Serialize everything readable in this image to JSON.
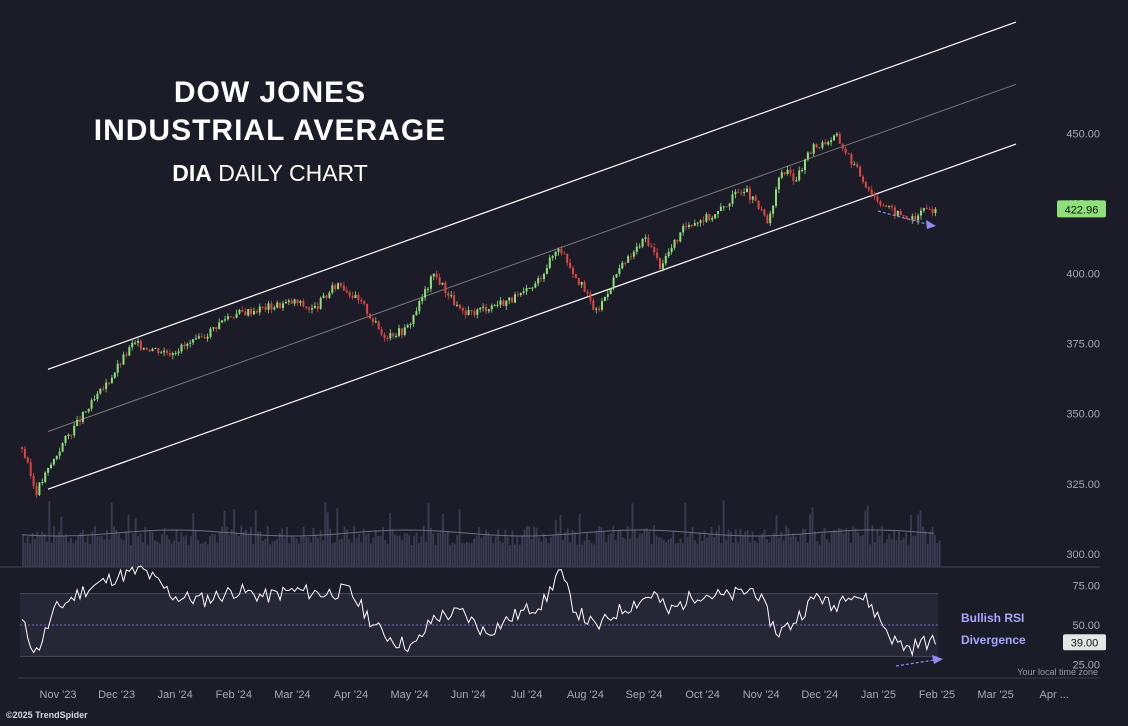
{
  "header": {
    "title_line1": "DOW JONES",
    "title_line2": "INDUSTRIAL AVERAGE",
    "ticker": "DIA",
    "subtitle_rest": "DAILY CHART"
  },
  "annotations": {
    "rsi_label_1": "Bullish RSI",
    "rsi_label_2": "Divergence"
  },
  "footer": {
    "copyright": "©2025 TrendSpider",
    "timezone": "Your local time zone"
  },
  "colors": {
    "background": "#1c1c29",
    "up_candle": "#8fe07a",
    "down_candle": "#e0463f",
    "channel_line": "#ffffff",
    "arrow": "#8f8cf2",
    "price_badge": "#8fe07a"
  },
  "chart_data": {
    "type": "candlestick",
    "price_axis": {
      "ticks": [
        "450.00",
        "425.00",
        "400.00",
        "375.00",
        "350.00",
        "325.00",
        "300.00"
      ],
      "ylim": [
        296,
        462
      ]
    },
    "last_price_label": "422.96",
    "x_ticks": [
      "Nov '23",
      "Dec '23",
      "Jan '24",
      "Feb '24",
      "Mar '24",
      "Apr '24",
      "May '24",
      "Jun '24",
      "Jul '24",
      "Aug '24",
      "Sep '24",
      "Oct '24",
      "Nov '24",
      "Dec '24",
      "Jan '25",
      "Feb '25",
      "Mar '25",
      "Apr ..."
    ],
    "price_path_dates": [
      "2023-10-20",
      "2023-10-27",
      "2023-11-10",
      "2023-12-01",
      "2023-12-15",
      "2024-01-02",
      "2024-01-17",
      "2024-02-01",
      "2024-02-20",
      "2024-03-06",
      "2024-03-15",
      "2024-03-28",
      "2024-04-10",
      "2024-04-19",
      "2024-05-01",
      "2024-05-15",
      "2024-05-30",
      "2024-06-10",
      "2024-06-28",
      "2024-07-05",
      "2024-07-17",
      "2024-07-25",
      "2024-08-05",
      "2024-08-15",
      "2024-08-30",
      "2024-09-06",
      "2024-09-20",
      "2024-10-04",
      "2024-10-18",
      "2024-10-31",
      "2024-11-06",
      "2024-11-14",
      "2024-11-22",
      "2024-12-04",
      "2024-12-18",
      "2024-12-24",
      "2025-01-02",
      "2025-01-13",
      "2025-01-16"
    ],
    "price_path_values": [
      338,
      322,
      340,
      360,
      375,
      372,
      376,
      385,
      388,
      390,
      387,
      397,
      388,
      378,
      380,
      400,
      385,
      388,
      392,
      396,
      410,
      400,
      386,
      400,
      413,
      403,
      418,
      421,
      431,
      418,
      437,
      434,
      445,
      449,
      433,
      427,
      422,
      419,
      422.96
    ],
    "channel": {
      "upper": {
        "from": [
          "2023-10-27",
          364.3
        ],
        "to": [
          "2025-01-31",
          481.5
        ]
      },
      "middle": {
        "from": [
          "2023-10-27",
          342.1
        ],
        "to": [
          "2025-01-31",
          459.3
        ]
      },
      "lower": {
        "from": [
          "2023-10-27",
          321.5
        ],
        "to": [
          "2025-01-31",
          438.0
        ]
      }
    },
    "rsi": {
      "ticks": [
        "75.00",
        "50.00",
        "25.00"
      ],
      "upper_band": 70,
      "mid_line": 50,
      "lower_band": 30,
      "last_value_label": "39.00",
      "path_dates": [
        "2023-10-20",
        "2023-10-27",
        "2023-11-06",
        "2023-11-20",
        "2023-12-05",
        "2023-12-20",
        "2024-01-05",
        "2024-01-20",
        "2024-02-05",
        "2024-02-20",
        "2024-03-05",
        "2024-03-20",
        "2024-04-02",
        "2024-04-16",
        "2024-04-25",
        "2024-05-05",
        "2024-05-15",
        "2024-05-29",
        "2024-06-10",
        "2024-06-25",
        "2024-07-10",
        "2024-07-17",
        "2024-07-25",
        "2024-08-05",
        "2024-08-15",
        "2024-09-03",
        "2024-09-10",
        "2024-09-25",
        "2024-10-10",
        "2024-10-24",
        "2024-11-04",
        "2024-11-11",
        "2024-11-25",
        "2024-12-02",
        "2024-12-10",
        "2024-12-20",
        "2025-01-02",
        "2025-01-10",
        "2025-01-16"
      ],
      "path_values": [
        52,
        32,
        60,
        72,
        80,
        85,
        68,
        66,
        72,
        68,
        72,
        70,
        72,
        48,
        40,
        36,
        55,
        58,
        45,
        56,
        65,
        85,
        60,
        48,
        58,
        70,
        58,
        70,
        68,
        73,
        45,
        50,
        70,
        60,
        72,
        65,
        40,
        35,
        39
      ],
      "divergence_label": "Bullish RSI Divergence"
    },
    "volume_axis_note": "volume bars (unlabeled scale)"
  }
}
